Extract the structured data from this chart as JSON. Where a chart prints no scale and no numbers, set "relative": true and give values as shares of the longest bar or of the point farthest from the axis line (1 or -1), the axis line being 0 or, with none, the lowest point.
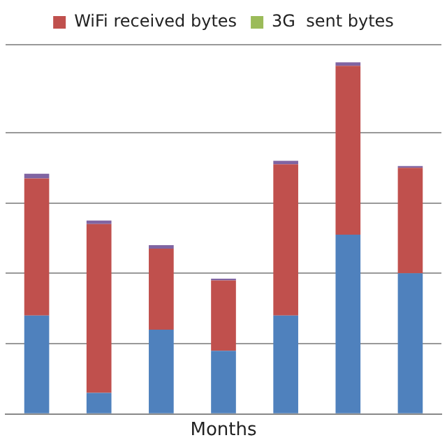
{
  "chart_data": {
    "type": "bar",
    "stacked": true,
    "relative": true,
    "xlabel": "Months",
    "grid": "y",
    "legend": "top",
    "categories": [
      null,
      null,
      null,
      null,
      null,
      null,
      null
    ],
    "series": [
      {
        "color": "#4f81bd",
        "values": [
          0.28,
          0.06,
          0.24,
          0.18,
          0.28,
          0.51,
          0.4
        ]
      },
      {
        "name": "WiFi received bytes",
        "color": "#c0504d",
        "values": [
          0.39,
          0.48,
          0.23,
          0.2,
          0.43,
          0.48,
          0.3
        ]
      },
      {
        "name": "3G  sent bytes",
        "color": "#9bbb59",
        "values": [
          0,
          0,
          0,
          0,
          0,
          0,
          0
        ]
      },
      {
        "color": "#8064a2",
        "values": [
          0.013,
          0.01,
          0.01,
          0.005,
          0.01,
          0.01,
          0.005
        ]
      }
    ]
  }
}
